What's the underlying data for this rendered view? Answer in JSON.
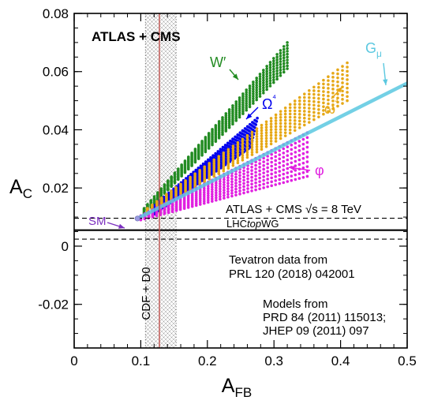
{
  "chart_data": {
    "type": "scatter",
    "title": "ATLAS + CMS",
    "xlabel": "A_FB",
    "ylabel": "A_C",
    "xlim": [
      0,
      0.5
    ],
    "ylim": [
      -0.035,
      0.08
    ],
    "x_ticks": [
      "0",
      "0.1",
      "0.2",
      "0.3",
      "0.4",
      "0.5"
    ],
    "y_ticks": [
      "-0.02",
      "0",
      "0.02",
      "0.04",
      "0.06",
      "0.08"
    ],
    "x_tick_values": [
      0,
      0.1,
      0.2,
      0.3,
      0.4,
      0.5
    ],
    "y_tick_values": [
      -0.02,
      0,
      0.02,
      0.04,
      0.06,
      0.08
    ],
    "lhc_measurement": {
      "label": "ATLAS + CMS √s = 8 TeV",
      "sublabel_prefix": "LHC",
      "sublabel_italic": "top",
      "sublabel_suffix": "WG",
      "central": 0.0055,
      "band": [
        0.0024,
        0.0096
      ]
    },
    "tevatron_measurement": {
      "label": "CDF + D0",
      "central": 0.128,
      "band": [
        0.107,
        0.153
      ]
    },
    "sm_point": {
      "label": "SM",
      "x": 0.095,
      "y": 0.0095
    },
    "series": [
      {
        "name": "W′",
        "color": "#228b22",
        "marker": "dot",
        "lower_edge": [
          [
            0.105,
            0.011
          ],
          [
            0.32,
            0.061
          ]
        ],
        "upper_edge": [
          [
            0.105,
            0.013
          ],
          [
            0.32,
            0.07
          ]
        ]
      },
      {
        "name": "Ω⁴",
        "color": "#0000ee",
        "marker": "dot",
        "lower_edge": [
          [
            0.12,
            0.011
          ],
          [
            0.265,
            0.034
          ]
        ],
        "upper_edge": [
          [
            0.12,
            0.014
          ],
          [
            0.275,
            0.044
          ]
        ]
      },
      {
        "name": "ω⁴",
        "color": "#e6a817",
        "marker": "dot",
        "lower_edge": [
          [
            0.11,
            0.011
          ],
          [
            0.41,
            0.05
          ]
        ],
        "upper_edge": [
          [
            0.11,
            0.013
          ],
          [
            0.41,
            0.063
          ]
        ]
      },
      {
        "name": "φ",
        "color": "#e020e0",
        "marker": "dot",
        "lower_edge": [
          [
            0.1,
            0.009
          ],
          [
            0.35,
            0.024
          ]
        ],
        "upper_edge": [
          [
            0.1,
            0.0105
          ],
          [
            0.35,
            0.039
          ]
        ]
      },
      {
        "name": "G_μ",
        "color": "#5bc8e0",
        "marker": "line",
        "points": [
          [
            0.095,
            0.0095
          ],
          [
            0.5,
            0.056
          ]
        ]
      }
    ],
    "annotations": {
      "tevatron_text": [
        "Tevatron data from",
        "PRL 120 (2018) 042001"
      ],
      "models_text": [
        "Models from",
        "PRD 84 (2011) 115013;",
        "JHEP 09 (2011) 097"
      ]
    },
    "grid": false,
    "legend": "none"
  }
}
